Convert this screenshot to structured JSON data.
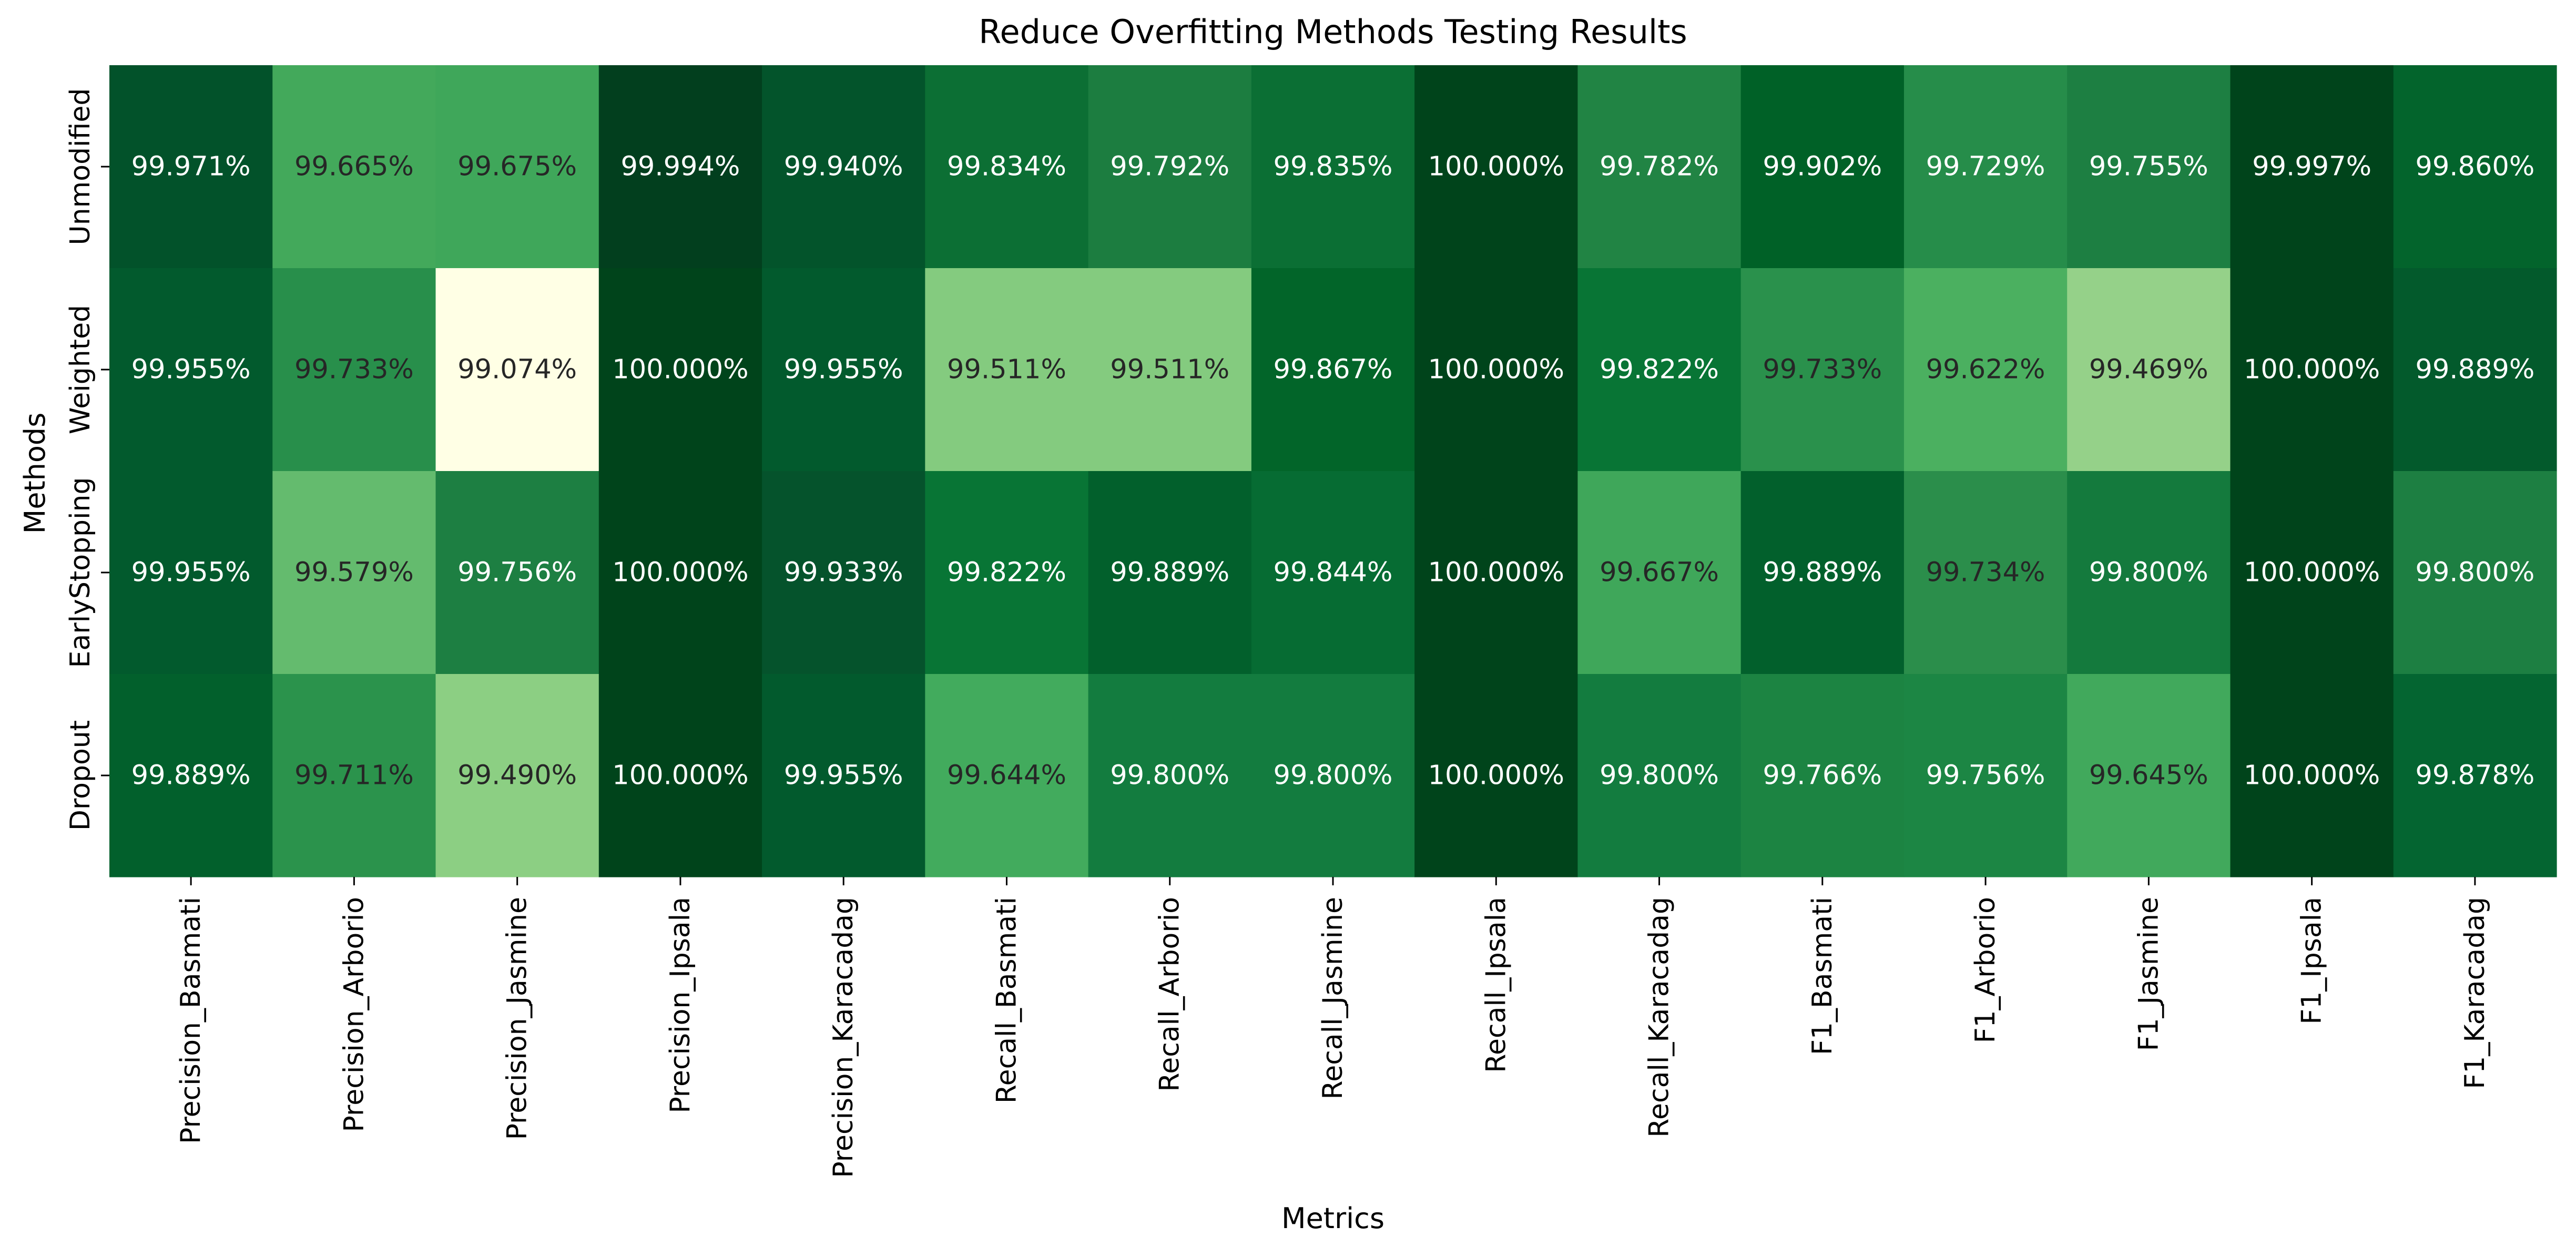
{
  "chart_data": {
    "type": "heatmap",
    "title": "Reduce Overfitting Methods Testing Results",
    "xlabel": "Metrics",
    "ylabel": "Methods",
    "colormap": "Greens",
    "colorbar": false,
    "value_suffix": "%",
    "decimals": 3,
    "columns": [
      "Precision_Basmati",
      "Precision_Arborio",
      "Precision_Jasmine",
      "Precision_Ipsala",
      "Precision_Karacadag",
      "Recall_Basmati",
      "Recall_Arborio",
      "Recall_Jasmine",
      "Recall_Ipsala",
      "Recall_Karacadag",
      "F1_Basmati",
      "F1_Arborio",
      "F1_Jasmine",
      "F1_Ipsala",
      "F1_Karacadag"
    ],
    "rows": [
      "Unmodified",
      "Weighted",
      "EarlyStopping",
      "Dropout"
    ],
    "values": [
      [
        99.971,
        99.665,
        99.675,
        99.994,
        99.94,
        99.834,
        99.792,
        99.835,
        100.0,
        99.782,
        99.902,
        99.729,
        99.755,
        99.997,
        99.86
      ],
      [
        99.955,
        99.733,
        99.074,
        100.0,
        99.955,
        99.511,
        99.511,
        99.867,
        100.0,
        99.822,
        99.733,
        99.622,
        99.469,
        100.0,
        99.889
      ],
      [
        99.955,
        99.579,
        99.756,
        100.0,
        99.933,
        99.822,
        99.889,
        99.844,
        100.0,
        99.667,
        99.889,
        99.734,
        99.8,
        100.0,
        99.8
      ],
      [
        99.889,
        99.711,
        99.49,
        100.0,
        99.955,
        99.644,
        99.8,
        99.8,
        100.0,
        99.8,
        99.766,
        99.756,
        99.645,
        100.0,
        99.878
      ]
    ],
    "value_range": [
      99.074,
      100.0
    ],
    "colors": {
      "cells": [
        [
          "#02522a",
          "#43a95b",
          "#3fa75a",
          "#023f1e",
          "#03542b",
          "#0c6f34",
          "#1c7d40",
          "#0b6f34",
          "#00441b",
          "#218444",
          "#006127",
          "#268d4a",
          "#1d7f42",
          "#00441b",
          "#03642c"
        ],
        [
          "#025a2d",
          "#288f4b",
          "#ffffe5",
          "#00441b",
          "#025a2d",
          "#84cb7f",
          "#84cb7f",
          "#026529",
          "#00441b",
          "#087535",
          "#2a914c",
          "#4bb060",
          "#95d189",
          "#00441b",
          "#035a2c"
        ],
        [
          "#025a2d",
          "#64bb6e",
          "#1d7f42",
          "#00441b",
          "#05532c",
          "#087535",
          "#02602c",
          "#066c33",
          "#00441b",
          "#3fa75a",
          "#02602c",
          "#2b8e4b",
          "#147a3d",
          "#00441b",
          "#1d7f42"
        ],
        [
          "#02602c",
          "#2b934c",
          "#8ccf83",
          "#00441b",
          "#025a2d",
          "#42ab5d",
          "#137c3f",
          "#137c3f",
          "#00441b",
          "#137c3f",
          "#1c8442",
          "#1c8644",
          "#41a95c",
          "#00441b",
          "#046531"
        ]
      ],
      "text_dark": "#262626",
      "text_light": "#ffffff",
      "axis": "#000000"
    }
  }
}
